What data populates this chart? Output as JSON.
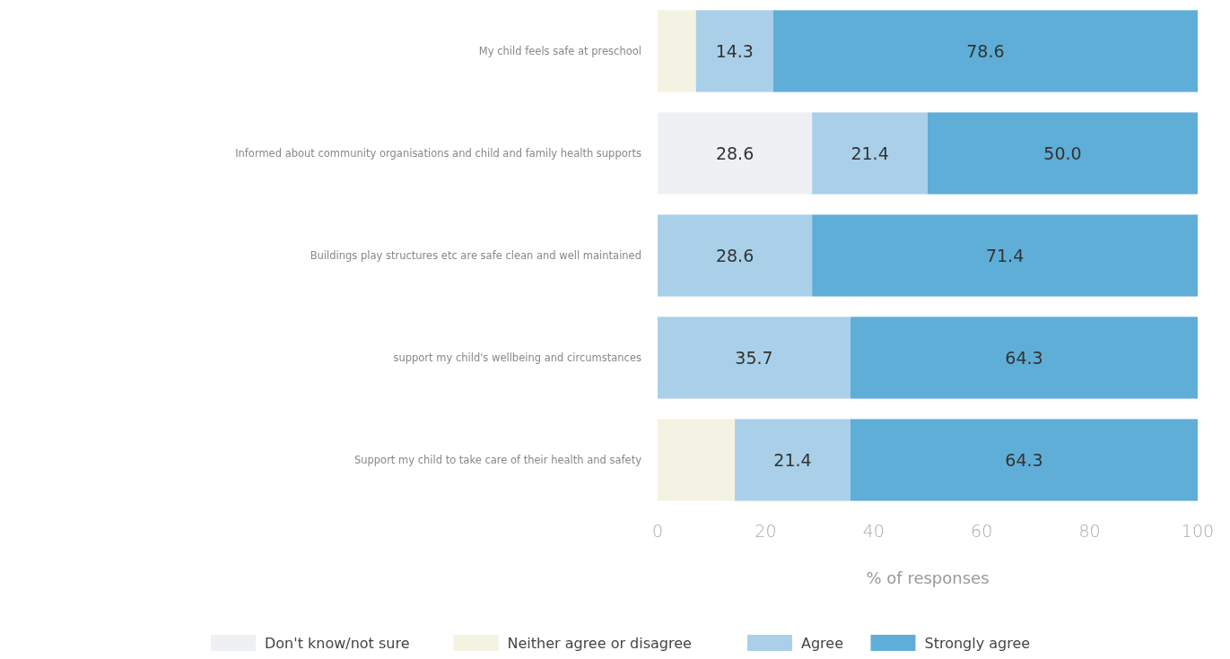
{
  "chart_data": {
    "type": "bar",
    "orientation": "horizontal",
    "stacked": true,
    "categories": [
      "My child feels safe at preschool",
      "Informed about community organisations and child and family health supports",
      "Buildings  play structures etc are safe  clean and well maintained",
      "support my child's wellbeing and circumstances",
      "Support my child to take care of their health and safety"
    ],
    "series": [
      {
        "name": "Don't know/not sure",
        "color": "#eef0f3",
        "values": [
          null,
          28.6,
          null,
          null,
          null
        ],
        "value_labels": [
          null,
          "28.6",
          null,
          null,
          null
        ]
      },
      {
        "name": "Neither agree or disagree",
        "color": "#f4f2e2",
        "values": [
          7.1,
          null,
          null,
          null,
          14.3
        ],
        "value_labels": [
          null,
          null,
          null,
          null,
          null
        ]
      },
      {
        "name": "Agree",
        "color": "#a9d0e8",
        "values": [
          14.3,
          21.4,
          28.6,
          35.7,
          21.4
        ],
        "value_labels": [
          "14.3",
          "21.4",
          "28.6",
          "35.7",
          "21.4"
        ]
      },
      {
        "name": "Strongly agree",
        "color": "#5eaed8",
        "values": [
          78.6,
          50.0,
          71.4,
          64.3,
          64.3
        ],
        "value_labels": [
          "78.6",
          "50.0",
          "71.4",
          "64.3",
          "64.3"
        ]
      }
    ],
    "xlim": [
      0,
      100
    ],
    "xticks": [
      0,
      20,
      40,
      60,
      80,
      100
    ],
    "xlabel": "% of responses",
    "legend": "bottom",
    "grid": false
  }
}
